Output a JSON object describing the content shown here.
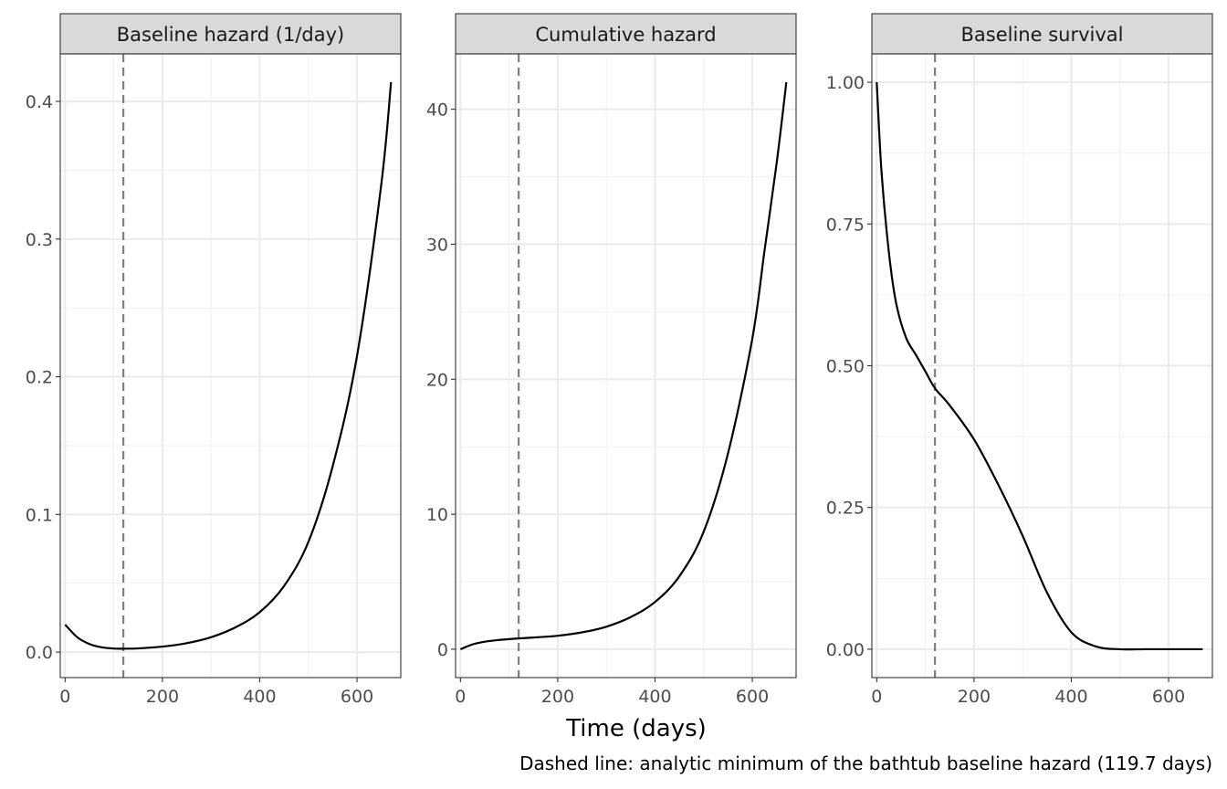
{
  "chart_data": [
    {
      "type": "line",
      "title": "Baseline hazard (1/day)",
      "xlim": [
        -10,
        690
      ],
      "ylim": [
        -0.0185,
        0.4345
      ],
      "x_ticks": [
        0,
        200,
        400,
        600
      ],
      "x_tick_labels": [
        "0",
        "200",
        "400",
        "600"
      ],
      "y_ticks": [
        0,
        0.1,
        0.2,
        0.3,
        0.4
      ],
      "y_tick_labels": [
        "0.0",
        "0.1",
        "0.2",
        "0.3",
        "0.4"
      ],
      "grid": true,
      "reference_line_x": 119.7,
      "x": [
        0,
        25,
        50,
        75,
        100,
        119.7,
        150,
        200,
        250,
        300,
        350,
        400,
        450,
        500,
        550,
        600,
        650,
        670
      ],
      "y": [
        0.02,
        0.0108,
        0.0059,
        0.0035,
        0.0026,
        0.0025,
        0.0027,
        0.004,
        0.0065,
        0.0108,
        0.018,
        0.029,
        0.048,
        0.08,
        0.135,
        0.215,
        0.34,
        0.414
      ]
    },
    {
      "type": "line",
      "title": "Cumulative hazard",
      "xlim": [
        -10,
        690
      ],
      "ylim": [
        -2.1,
        44.1
      ],
      "x_ticks": [
        0,
        200,
        400,
        600
      ],
      "x_tick_labels": [
        "0",
        "200",
        "400",
        "600"
      ],
      "y_ticks": [
        0,
        10,
        20,
        30,
        40
      ],
      "y_tick_labels": [
        "0",
        "10",
        "20",
        "30",
        "40"
      ],
      "grid": true,
      "reference_line_x": 119.7,
      "x": [
        0,
        25,
        50,
        75,
        100,
        120,
        150,
        200,
        250,
        300,
        350,
        400,
        450,
        500,
        550,
        600,
        625,
        650,
        670
      ],
      "y": [
        0,
        0.36,
        0.56,
        0.67,
        0.75,
        0.8,
        0.87,
        1.0,
        1.25,
        1.67,
        2.38,
        3.5,
        5.4,
        8.7,
        14.5,
        23.0,
        29.5,
        36.0,
        42.0
      ]
    },
    {
      "type": "line",
      "title": "Baseline survival",
      "xlim": [
        -10,
        690
      ],
      "ylim": [
        -0.05,
        1.05
      ],
      "x_ticks": [
        0,
        200,
        400,
        600
      ],
      "x_tick_labels": [
        "0",
        "200",
        "400",
        "600"
      ],
      "y_ticks": [
        0,
        0.25,
        0.5,
        0.75,
        1.0
      ],
      "y_tick_labels": [
        "0.00",
        "0.25",
        "0.50",
        "0.75",
        "1.00"
      ],
      "grid": true,
      "reference_line_x": 119.7,
      "x": [
        0,
        10,
        25,
        40,
        60,
        80,
        100,
        120,
        150,
        200,
        250,
        300,
        350,
        400,
        450,
        500,
        550,
        600,
        670
      ],
      "y": [
        1.0,
        0.84,
        0.7,
        0.61,
        0.55,
        0.52,
        0.49,
        0.46,
        0.43,
        0.37,
        0.29,
        0.2,
        0.1,
        0.03,
        0.005,
        0.0,
        0.0,
        0.0,
        0.0
      ]
    }
  ],
  "x_axis_label": "Time (days)",
  "caption": "Dashed line: analytic minimum of the bathtub baseline hazard (119.7 days)"
}
